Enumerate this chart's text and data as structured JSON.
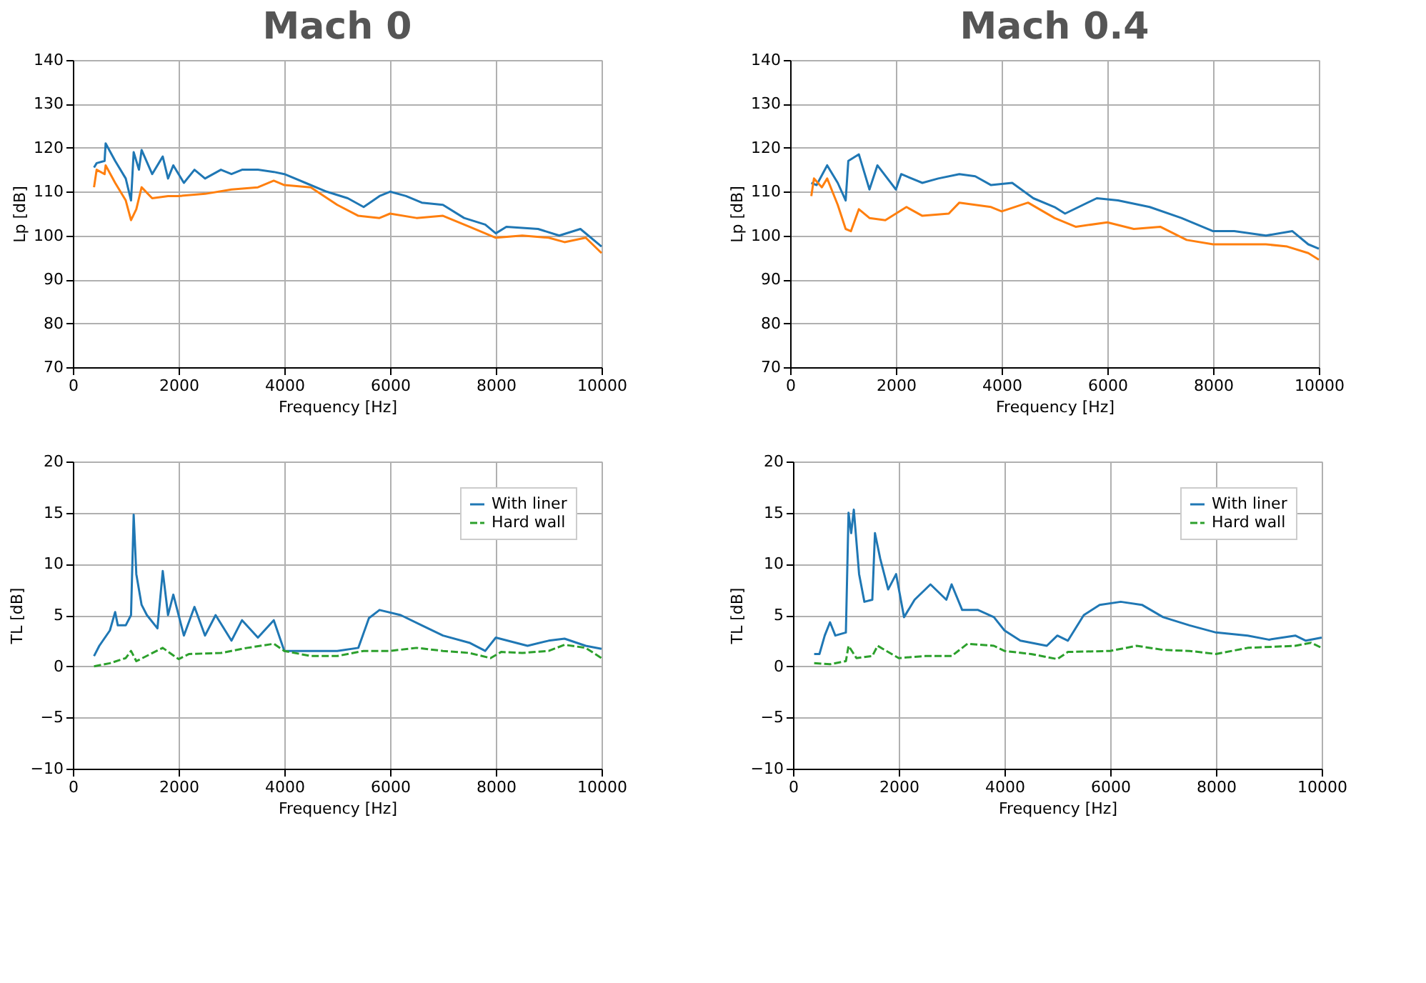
{
  "chart_data": [
    {
      "type": "line",
      "title": "Mach 0",
      "xlabel": "Frequency [Hz]",
      "ylabel": "Lp [dB]",
      "xlim": [
        0,
        10000
      ],
      "xticks": [
        0,
        2000,
        4000,
        6000,
        8000,
        10000
      ],
      "ylim": [
        70,
        140
      ],
      "yticks": [
        70,
        80,
        90,
        100,
        110,
        120,
        130,
        140
      ],
      "grid": true,
      "legend": false,
      "series": [
        {
          "color": "#1f77b4",
          "line_style": "solid",
          "x": [
            400,
            450,
            600,
            620,
            800,
            1000,
            1100,
            1150,
            1250,
            1300,
            1500,
            1700,
            1800,
            1900,
            2100,
            2300,
            2500,
            2800,
            3000,
            3200,
            3500,
            3800,
            4000,
            4400,
            4800,
            5200,
            5500,
            5800,
            6000,
            6300,
            6600,
            7000,
            7400,
            7800,
            8000,
            8200,
            8800,
            9200,
            9600,
            10000
          ],
          "values": [
            115.5,
            116.5,
            117,
            121,
            117,
            113,
            108,
            119,
            115,
            119.5,
            114,
            118,
            113,
            116,
            112,
            115,
            113,
            115,
            114,
            115,
            115,
            114.5,
            114,
            112,
            110,
            108.5,
            106.5,
            109,
            110,
            109,
            107.5,
            107,
            104,
            102.5,
            100.5,
            102,
            101.5,
            100,
            101.5,
            97.5
          ]
        },
        {
          "color": "#ff7f0e",
          "line_style": "solid",
          "x": [
            400,
            450,
            600,
            620,
            800,
            1000,
            1100,
            1200,
            1300,
            1500,
            1800,
            2000,
            2500,
            3000,
            3500,
            3800,
            4000,
            4500,
            5000,
            5400,
            5800,
            6000,
            6500,
            7000,
            7500,
            8000,
            8500,
            9000,
            9300,
            9700,
            10000
          ],
          "values": [
            111,
            115,
            114,
            116,
            112,
            108,
            103.5,
            106,
            111,
            108.5,
            109,
            109,
            109.5,
            110.5,
            111,
            112.5,
            111.5,
            111,
            107,
            104.5,
            104,
            105,
            104,
            104.5,
            102,
            99.5,
            100,
            99.5,
            98.5,
            99.5,
            96
          ]
        }
      ]
    },
    {
      "type": "line",
      "title": "Mach 0.4",
      "xlabel": "Frequency [Hz]",
      "ylabel": "Lp [dB]",
      "xlim": [
        0,
        10000
      ],
      "xticks": [
        0,
        2000,
        4000,
        6000,
        8000,
        10000
      ],
      "ylim": [
        70,
        140
      ],
      "yticks": [
        70,
        80,
        90,
        100,
        110,
        120,
        130,
        140
      ],
      "grid": true,
      "legend": false,
      "series": [
        {
          "color": "#1f77b4",
          "line_style": "solid",
          "x": [
            400,
            500,
            700,
            900,
            1050,
            1100,
            1300,
            1500,
            1650,
            2000,
            2100,
            2500,
            2800,
            3200,
            3500,
            3800,
            4200,
            4600,
            5000,
            5200,
            5800,
            6200,
            6800,
            7400,
            8000,
            8400,
            9000,
            9500,
            9800,
            10000
          ],
          "values": [
            112,
            111.5,
            116,
            112,
            108,
            117,
            118.5,
            110.5,
            116,
            110.5,
            114,
            112,
            113,
            114,
            113.5,
            111.5,
            112,
            108.5,
            106.5,
            105,
            108.5,
            108,
            106.5,
            104,
            101,
            101,
            100,
            101,
            98,
            97
          ]
        },
        {
          "color": "#ff7f0e",
          "line_style": "solid",
          "x": [
            400,
            450,
            600,
            700,
            900,
            1050,
            1150,
            1300,
            1500,
            1800,
            2200,
            2500,
            3000,
            3200,
            3800,
            4000,
            4500,
            5000,
            5400,
            6000,
            6500,
            7000,
            7500,
            8000,
            9000,
            9400,
            9800,
            10000
          ],
          "values": [
            109,
            113,
            111,
            113,
            107,
            101.5,
            101,
            106,
            104,
            103.5,
            106.5,
            104.5,
            105,
            107.5,
            106.5,
            105.5,
            107.5,
            104,
            102,
            103,
            101.5,
            102,
            99,
            98,
            98,
            97.5,
            96,
            94.5
          ]
        }
      ]
    },
    {
      "type": "line",
      "xlabel": "Frequency [Hz]",
      "ylabel": "TL [dB]",
      "xlim": [
        0,
        10000
      ],
      "xticks": [
        0,
        2000,
        4000,
        6000,
        8000,
        10000
      ],
      "ylim": [
        -10,
        20
      ],
      "yticks": [
        -10,
        -5,
        0,
        5,
        10,
        15,
        20
      ],
      "grid": true,
      "legend": "top right",
      "series": [
        {
          "name": "With liner",
          "color": "#1f77b4",
          "line_style": "solid",
          "x": [
            400,
            500,
            700,
            800,
            850,
            1000,
            1100,
            1150,
            1200,
            1300,
            1400,
            1600,
            1700,
            1800,
            1900,
            2100,
            2300,
            2500,
            2700,
            3000,
            3200,
            3500,
            3800,
            4000,
            4500,
            5000,
            5400,
            5600,
            5800,
            6200,
            6600,
            7000,
            7500,
            7800,
            8000,
            8600,
            9000,
            9300,
            9700,
            10000
          ],
          "values": [
            1,
            2,
            3.5,
            5.3,
            4,
            4,
            5,
            14.8,
            9,
            6,
            5,
            3.7,
            9.3,
            5,
            7,
            3,
            5.8,
            3,
            5,
            2.5,
            4.5,
            2.8,
            4.5,
            1.5,
            1.5,
            1.5,
            1.8,
            4.7,
            5.5,
            5,
            4,
            3,
            2.3,
            1.5,
            2.8,
            2,
            2.5,
            2.7,
            2,
            1.7
          ]
        },
        {
          "name": "Hard wall",
          "color": "#2ca02c",
          "line_style": "dashed",
          "x": [
            400,
            700,
            1000,
            1100,
            1200,
            1700,
            2000,
            2200,
            2800,
            3300,
            3800,
            4000,
            4500,
            5000,
            5500,
            6000,
            6500,
            7000,
            7500,
            7900,
            8100,
            8500,
            9000,
            9300,
            9700,
            10000
          ],
          "values": [
            0,
            0.3,
            0.8,
            1.5,
            0.5,
            1.8,
            0.7,
            1.2,
            1.3,
            1.8,
            2.2,
            1.5,
            1,
            1,
            1.5,
            1.5,
            1.8,
            1.5,
            1.3,
            0.8,
            1.4,
            1.3,
            1.5,
            2.1,
            1.8,
            0.8
          ]
        }
      ]
    },
    {
      "type": "line",
      "xlabel": "Frequency [Hz]",
      "ylabel": "TL [dB]",
      "xlim": [
        0,
        10000
      ],
      "xticks": [
        0,
        2000,
        4000,
        6000,
        8000,
        10000
      ],
      "ylim": [
        -10,
        20
      ],
      "yticks": [
        -10,
        -5,
        0,
        5,
        10,
        15,
        20
      ],
      "grid": true,
      "legend": "top right",
      "series": [
        {
          "name": "With liner",
          "color": "#1f77b4",
          "line_style": "solid",
          "x": [
            400,
            500,
            600,
            700,
            800,
            1000,
            1050,
            1100,
            1150,
            1250,
            1350,
            1500,
            1550,
            1650,
            1800,
            1950,
            2100,
            2300,
            2600,
            2900,
            3000,
            3200,
            3500,
            3800,
            4000,
            4300,
            4800,
            5000,
            5200,
            5500,
            5800,
            6200,
            6600,
            7000,
            7500,
            8000,
            8600,
            9000,
            9500,
            9700,
            10000
          ],
          "values": [
            1.2,
            1.2,
            3,
            4.3,
            3,
            3.3,
            15,
            13,
            15.3,
            9,
            6.3,
            6.5,
            13,
            10.5,
            7.5,
            9,
            4.8,
            6.5,
            8,
            6.5,
            8,
            5.5,
            5.5,
            4.8,
            3.5,
            2.5,
            2,
            3,
            2.5,
            5,
            6,
            6.3,
            6,
            4.8,
            4,
            3.3,
            3,
            2.6,
            3,
            2.5,
            2.8
          ]
        },
        {
          "name": "Hard wall",
          "color": "#2ca02c",
          "line_style": "dashed",
          "x": [
            400,
            700,
            1000,
            1050,
            1200,
            1500,
            1600,
            2000,
            2500,
            3000,
            3300,
            3800,
            4000,
            4500,
            5000,
            5200,
            6000,
            6500,
            7000,
            7500,
            8000,
            8600,
            9500,
            9800,
            10000
          ],
          "values": [
            0.3,
            0.2,
            0.5,
            2,
            0.8,
            1,
            2,
            0.8,
            1,
            1,
            2.2,
            2,
            1.5,
            1.2,
            0.7,
            1.4,
            1.5,
            2,
            1.6,
            1.5,
            1.2,
            1.8,
            2,
            2.3,
            1.8
          ]
        }
      ]
    }
  ]
}
